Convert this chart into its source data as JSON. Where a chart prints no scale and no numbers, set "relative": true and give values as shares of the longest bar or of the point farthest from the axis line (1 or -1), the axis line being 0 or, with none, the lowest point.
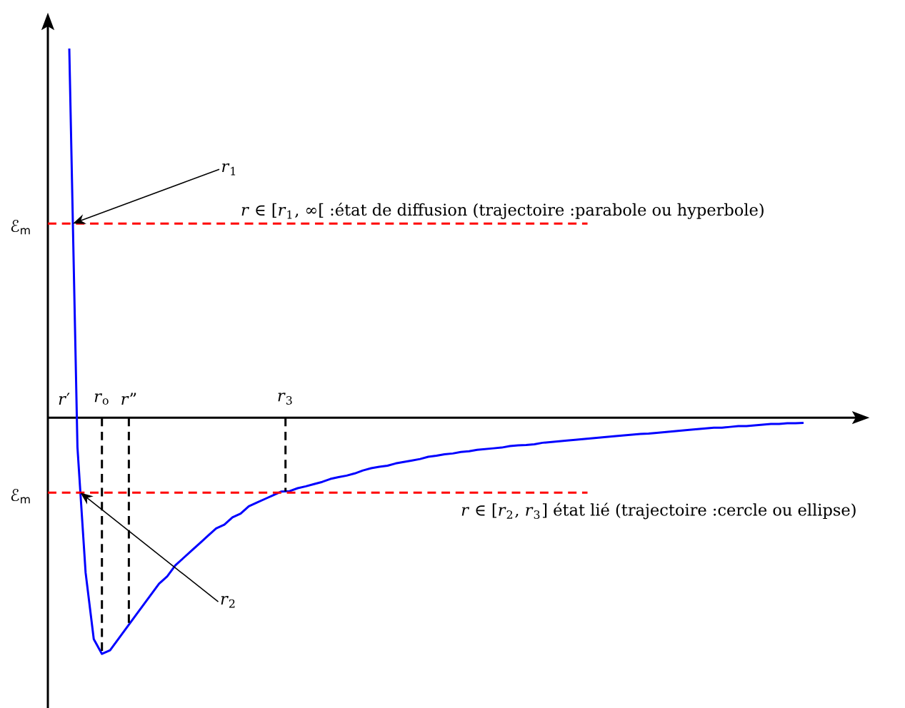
{
  "chart_data": {
    "type": "line",
    "relative": true,
    "categories": [
      null,
      null,
      null,
      null,
      null,
      null,
      null,
      null,
      null,
      null,
      null,
      null,
      null,
      null,
      null,
      null,
      null,
      null,
      null,
      null,
      null,
      null,
      null,
      null,
      null,
      null,
      null,
      null,
      null,
      null,
      null,
      null,
      null,
      null,
      null,
      null,
      null,
      null,
      null,
      null,
      null,
      null,
      null,
      null,
      null,
      null,
      null,
      null,
      null,
      null,
      null,
      null,
      null,
      null,
      null,
      null,
      null,
      null,
      null,
      null,
      null,
      null,
      null,
      null,
      null,
      null,
      null,
      null,
      null,
      null,
      null,
      null,
      null,
      null,
      null,
      null,
      null,
      null,
      null,
      null,
      null,
      null,
      null,
      null,
      null,
      null,
      null,
      null,
      null,
      null,
      null
    ],
    "series": [
      {
        "color": "#0000ff",
        "values": [
          1.0,
          -0.08,
          -0.42,
          -0.6,
          -0.64,
          -0.63,
          -0.6,
          -0.57,
          -0.54,
          -0.51,
          -0.48,
          -0.45,
          -0.43,
          -0.4,
          -0.38,
          -0.36,
          -0.34,
          -0.32,
          -0.3,
          -0.29,
          -0.27,
          -0.26,
          -0.24,
          -0.23,
          -0.22,
          -0.21,
          -0.2,
          -0.199,
          -0.191,
          -0.186,
          -0.18,
          -0.174,
          -0.166,
          -0.161,
          -0.157,
          -0.151,
          -0.143,
          -0.137,
          -0.133,
          -0.13,
          -0.124,
          -0.12,
          -0.116,
          -0.112,
          -0.106,
          -0.103,
          -0.099,
          -0.097,
          -0.093,
          -0.091,
          -0.087,
          -0.085,
          -0.083,
          -0.081,
          -0.077,
          -0.075,
          -0.074,
          -0.072,
          -0.068,
          -0.066,
          -0.064,
          -0.062,
          -0.06,
          -0.058,
          -0.056,
          -0.054,
          -0.052,
          -0.05,
          -0.048,
          -0.046,
          -0.044,
          -0.043,
          -0.041,
          -0.039,
          -0.037,
          -0.035,
          -0.033,
          -0.031,
          -0.029,
          -0.027,
          -0.027,
          -0.025,
          -0.023,
          -0.023,
          -0.021,
          -0.019,
          -0.017,
          -0.017,
          -0.015,
          -0.015,
          -0.014
        ]
      }
    ],
    "ref_lines": [
      {
        "axis": "y",
        "value": 0.526,
        "label": "ℰ$_{m}$",
        "color": "#ff0000",
        "line_style": "dashed"
      },
      {
        "axis": "y",
        "value": -0.203,
        "label": "ℰ$_{m}$",
        "color": "#ff0000",
        "line_style": "dashed"
      }
    ],
    "annotations": [
      "*r*′",
      "*r*$_{o}$",
      "*r*”",
      "*r*$_{3}$",
      "*r*$_{1}$",
      "*r*$_{2}$",
      "*r* ∈ [*r*$_{1}$, ∞[ :état de diffusion (trajectoire :parabole ou hyperbole)",
      "*r* ∈ [*r*$_{2}$, *r*$_{3}$] état lié (trajectoire :cercle ou ellipse)"
    ]
  }
}
